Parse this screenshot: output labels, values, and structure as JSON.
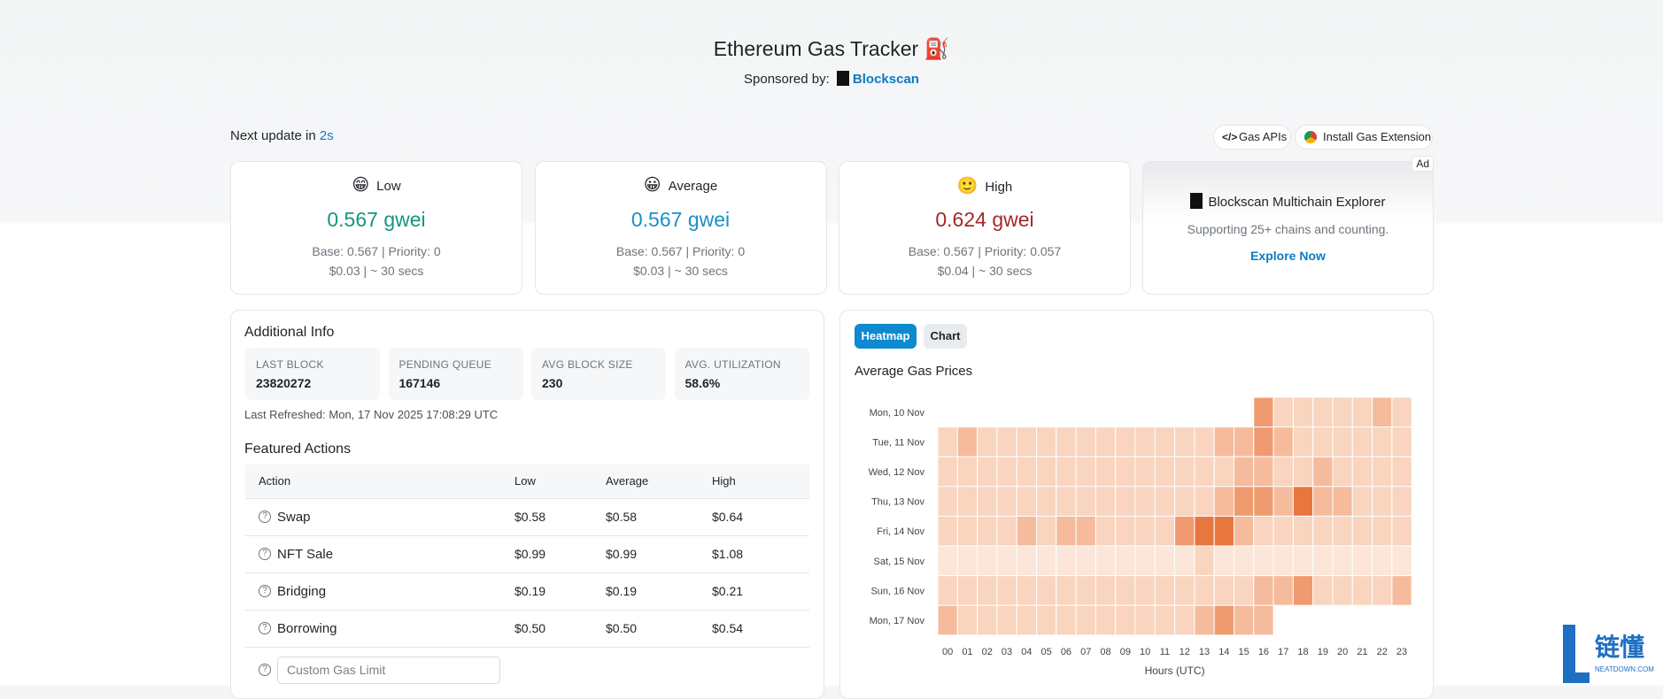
{
  "header": {
    "title": "Ethereum Gas Tracker",
    "title_icon": "⛽",
    "sponsored_label": "Sponsored by:",
    "sponsor": "Blockscan"
  },
  "toolbar": {
    "next_update_label": "Next update in",
    "next_update_value": "2s",
    "buttons": [
      "Gas APIs",
      "Install Gas Extension"
    ]
  },
  "gas_cards": [
    {
      "emoji": "😁",
      "label": "Low",
      "price": "0.567 gwei",
      "base": "Base: 0.567 | Priority: 0",
      "cost": "$0.03 | ~ 30 secs"
    },
    {
      "emoji": "😀",
      "label": "Average",
      "price": "0.567 gwei",
      "base": "Base: 0.567 | Priority: 0",
      "cost": "$0.03 | ~ 30 secs"
    },
    {
      "emoji": "🙂",
      "label": "High",
      "price": "0.624 gwei",
      "base": "Base: 0.567 | Priority: 0.057",
      "cost": "$0.04 | ~ 30 secs"
    }
  ],
  "ad": {
    "badge": "Ad",
    "title": "Blockscan Multichain Explorer",
    "text": "Supporting 25+ chains and counting.",
    "link": "Explore Now"
  },
  "additional_info": {
    "title": "Additional Info",
    "stats": [
      {
        "label": "LAST BLOCK",
        "value": "23820272"
      },
      {
        "label": "PENDING QUEUE",
        "value": "167146"
      },
      {
        "label": "AVG BLOCK SIZE",
        "value": "230"
      },
      {
        "label": "AVG. UTILIZATION",
        "value": "58.6%"
      }
    ],
    "last_refreshed": "Last Refreshed: Mon, 17 Nov 2025 17:08:29 UTC"
  },
  "featured_actions": {
    "title": "Featured Actions",
    "columns": [
      "Action",
      "Low",
      "Average",
      "High"
    ],
    "rows": [
      [
        "Swap",
        "$0.58",
        "$0.58",
        "$0.64"
      ],
      [
        "NFT Sale",
        "$0.99",
        "$0.99",
        "$1.08"
      ],
      [
        "Bridging",
        "$0.19",
        "$0.19",
        "$0.21"
      ],
      [
        "Borrowing",
        "$0.50",
        "$0.50",
        "$0.54"
      ]
    ],
    "custom_placeholder": "Custom Gas Limit"
  },
  "heatmap": {
    "tabs": [
      "Heatmap",
      "Chart"
    ],
    "title": "Average Gas Prices",
    "rows": [
      "Mon, 10 Nov",
      "Tue, 11 Nov",
      "Wed, 12 Nov",
      "Thu, 13 Nov",
      "Fri, 14 Nov",
      "Sat, 15 Nov",
      "Sun, 16 Nov",
      "Mon, 17 Nov"
    ],
    "hours": [
      "00",
      "01",
      "02",
      "03",
      "04",
      "05",
      "06",
      "07",
      "08",
      "09",
      "10",
      "11",
      "12",
      "13",
      "14",
      "15",
      "16",
      "17",
      "18",
      "19",
      "20",
      "21",
      "22",
      "23"
    ],
    "x_label": "Hours (UTC)",
    "levels": [
      [
        null,
        null,
        null,
        null,
        null,
        null,
        null,
        null,
        null,
        null,
        null,
        null,
        null,
        null,
        null,
        null,
        4,
        2,
        2,
        2,
        2,
        2,
        3,
        2
      ],
      [
        2,
        3,
        2,
        2,
        2,
        2,
        2,
        2,
        2,
        2,
        2,
        2,
        2,
        2,
        3,
        3,
        4,
        3,
        2,
        2,
        2,
        2,
        2,
        2
      ],
      [
        2,
        2,
        2,
        2,
        2,
        2,
        2,
        2,
        2,
        2,
        2,
        2,
        2,
        2,
        2,
        3,
        3,
        2,
        2,
        3,
        2,
        2,
        2,
        2
      ],
      [
        2,
        2,
        2,
        2,
        2,
        2,
        2,
        2,
        2,
        2,
        2,
        2,
        2,
        2,
        3,
        4,
        4,
        3,
        5,
        3,
        3,
        2,
        2,
        2
      ],
      [
        2,
        2,
        2,
        2,
        3,
        2,
        3,
        3,
        2,
        2,
        2,
        2,
        4,
        5,
        5,
        3,
        2,
        2,
        2,
        2,
        2,
        2,
        2,
        2
      ],
      [
        1,
        1,
        1,
        1,
        1,
        1,
        1,
        1,
        1,
        1,
        1,
        1,
        1,
        2,
        1,
        1,
        1,
        1,
        1,
        1,
        1,
        1,
        1,
        1
      ],
      [
        2,
        2,
        2,
        2,
        2,
        2,
        2,
        2,
        2,
        2,
        2,
        2,
        2,
        2,
        2,
        2,
        3,
        3,
        4,
        2,
        2,
        2,
        2,
        3
      ],
      [
        3,
        2,
        2,
        2,
        2,
        2,
        2,
        2,
        2,
        2,
        2,
        2,
        2,
        3,
        4,
        3,
        3,
        null,
        null,
        null,
        null,
        null,
        null,
        null
      ]
    ]
  },
  "watermark": {
    "text": "链懂",
    "sub": "NEATDOWN.COM"
  }
}
